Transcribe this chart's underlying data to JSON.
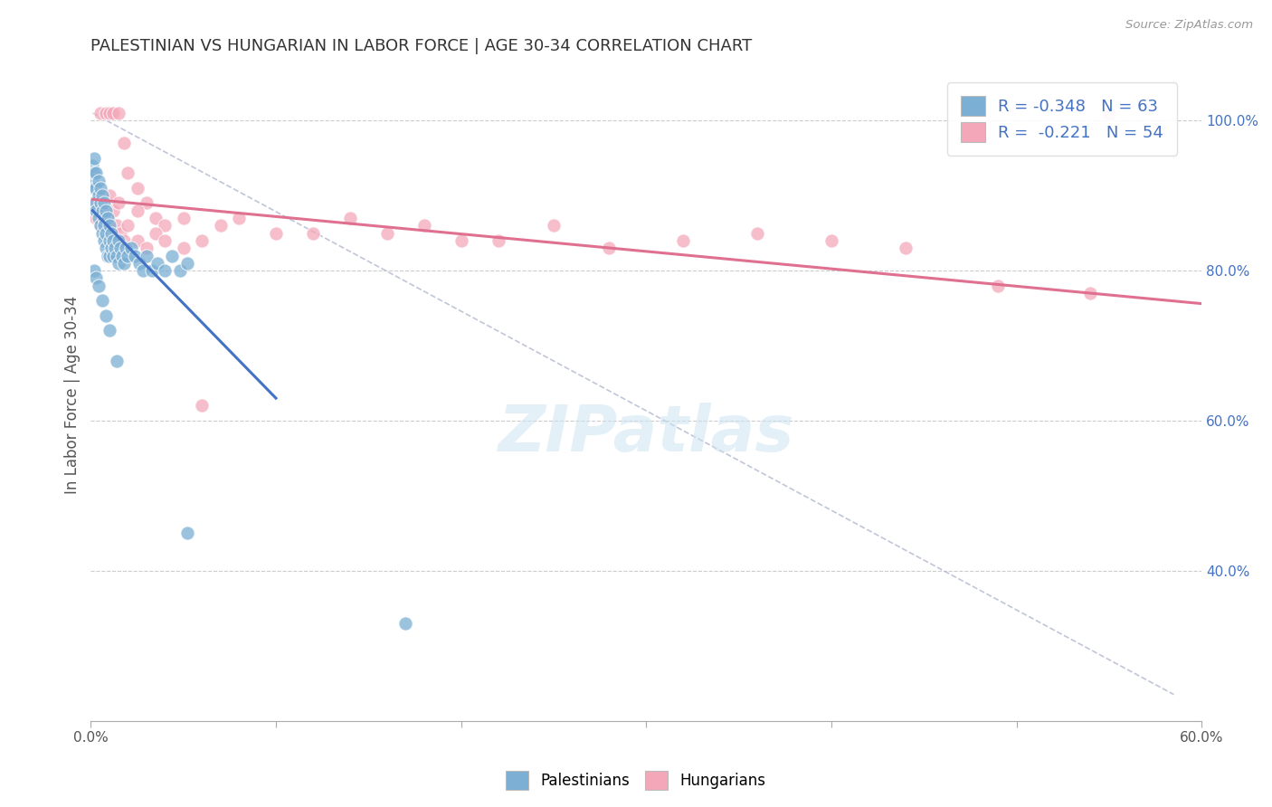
{
  "title": "PALESTINIAN VS HUNGARIAN IN LABOR FORCE | AGE 30-34 CORRELATION CHART",
  "source": "Source: ZipAtlas.com",
  "ylabel": "In Labor Force | Age 30-34",
  "xlim": [
    0.0,
    0.6
  ],
  "ylim": [
    0.2,
    1.07
  ],
  "xticks": [
    0.0,
    0.1,
    0.2,
    0.3,
    0.4,
    0.5,
    0.6
  ],
  "yticks_right": [
    0.4,
    0.6,
    0.8,
    1.0
  ],
  "ytick_right_labels": [
    "40.0%",
    "60.0%",
    "80.0%",
    "100.0%"
  ],
  "legend_r_blue": "-0.348",
  "legend_n_blue": "63",
  "legend_r_pink": "-0.221",
  "legend_n_pink": "54",
  "blue_color": "#7bafd4",
  "pink_color": "#f4a7b9",
  "blue_line_color": "#4472c4",
  "pink_line_color": "#e07090",
  "ref_line_color": "#b0b8cc",
  "background_color": "#ffffff",
  "watermark": "ZIPatlas",
  "blue_dots_x": [
    0.001,
    0.001,
    0.002,
    0.002,
    0.002,
    0.003,
    0.003,
    0.003,
    0.003,
    0.004,
    0.004,
    0.004,
    0.005,
    0.005,
    0.005,
    0.006,
    0.006,
    0.006,
    0.007,
    0.007,
    0.007,
    0.007,
    0.008,
    0.008,
    0.008,
    0.009,
    0.009,
    0.01,
    0.01,
    0.01,
    0.011,
    0.011,
    0.012,
    0.012,
    0.013,
    0.014,
    0.015,
    0.015,
    0.016,
    0.017,
    0.018,
    0.019,
    0.02,
    0.022,
    0.024,
    0.026,
    0.028,
    0.03,
    0.033,
    0.036,
    0.04,
    0.044,
    0.048,
    0.052,
    0.002,
    0.003,
    0.004,
    0.006,
    0.008,
    0.01,
    0.014,
    0.052,
    0.17
  ],
  "blue_dots_y": [
    0.92,
    0.94,
    0.91,
    0.93,
    0.95,
    0.89,
    0.91,
    0.93,
    0.88,
    0.9,
    0.92,
    0.87,
    0.89,
    0.91,
    0.86,
    0.88,
    0.9,
    0.85,
    0.87,
    0.89,
    0.84,
    0.86,
    0.88,
    0.83,
    0.85,
    0.87,
    0.82,
    0.86,
    0.84,
    0.82,
    0.85,
    0.83,
    0.84,
    0.82,
    0.83,
    0.82,
    0.84,
    0.81,
    0.83,
    0.82,
    0.81,
    0.83,
    0.82,
    0.83,
    0.82,
    0.81,
    0.8,
    0.82,
    0.8,
    0.81,
    0.8,
    0.82,
    0.8,
    0.81,
    0.8,
    0.79,
    0.78,
    0.76,
    0.74,
    0.72,
    0.68,
    0.45,
    0.33
  ],
  "pink_dots_x": [
    0.005,
    0.008,
    0.01,
    0.012,
    0.015,
    0.018,
    0.02,
    0.025,
    0.03,
    0.035,
    0.04,
    0.05,
    0.06,
    0.07,
    0.08,
    0.1,
    0.12,
    0.14,
    0.16,
    0.18,
    0.2,
    0.22,
    0.25,
    0.28,
    0.32,
    0.36,
    0.4,
    0.44,
    0.49,
    0.54,
    0.002,
    0.003,
    0.004,
    0.005,
    0.006,
    0.007,
    0.008,
    0.009,
    0.01,
    0.012,
    0.014,
    0.016,
    0.018,
    0.02,
    0.025,
    0.03,
    0.035,
    0.04,
    0.05,
    0.06,
    0.01,
    0.015,
    0.025,
    0.55
  ],
  "pink_dots_y": [
    1.01,
    1.01,
    1.01,
    1.01,
    1.01,
    0.97,
    0.93,
    0.91,
    0.89,
    0.87,
    0.86,
    0.87,
    0.84,
    0.86,
    0.87,
    0.85,
    0.85,
    0.87,
    0.85,
    0.86,
    0.84,
    0.84,
    0.86,
    0.83,
    0.84,
    0.85,
    0.84,
    0.83,
    0.78,
    0.77,
    0.89,
    0.87,
    0.88,
    0.86,
    0.9,
    0.88,
    0.86,
    0.87,
    0.85,
    0.88,
    0.86,
    0.85,
    0.84,
    0.86,
    0.84,
    0.83,
    0.85,
    0.84,
    0.83,
    0.62,
    0.9,
    0.89,
    0.88,
    1.01
  ],
  "blue_line_x": [
    0.001,
    0.1
  ],
  "blue_line_y": [
    0.88,
    0.63
  ],
  "pink_line_x": [
    0.001,
    0.6
  ],
  "pink_line_y": [
    0.895,
    0.756
  ],
  "ref_line_x": [
    0.001,
    0.585
  ],
  "ref_line_y": [
    1.01,
    0.235
  ]
}
